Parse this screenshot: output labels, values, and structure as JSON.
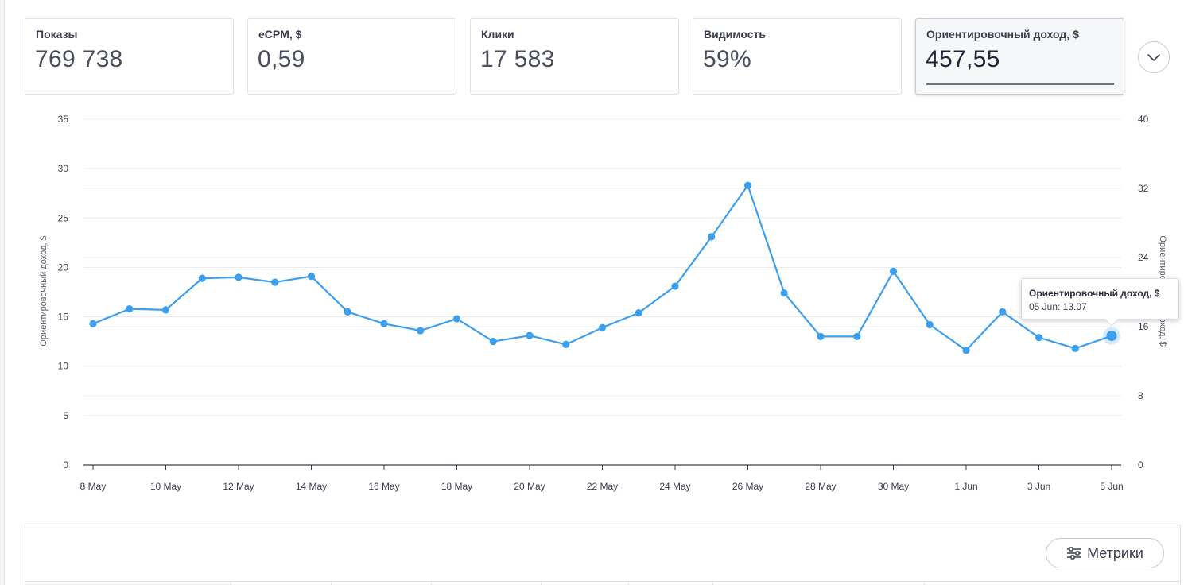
{
  "cards": [
    {
      "label": "Показы",
      "value": "769 738",
      "active": false
    },
    {
      "label": "eCPM, $",
      "value": "0,59",
      "active": false
    },
    {
      "label": "Клики",
      "value": "17 583",
      "active": false
    },
    {
      "label": "Видимость",
      "value": "59%",
      "active": false
    },
    {
      "label": "Ориентировочный доход, $",
      "value": "457,55",
      "active": true
    }
  ],
  "expand_icon": "chevron-down-icon",
  "chart_data": {
    "type": "line",
    "x": [
      "8 May",
      "9 May",
      "10 May",
      "11 May",
      "12 May",
      "13 May",
      "14 May",
      "15 May",
      "16 May",
      "17 May",
      "18 May",
      "19 May",
      "20 May",
      "21 May",
      "22 May",
      "23 May",
      "24 May",
      "25 May",
      "26 May",
      "27 May",
      "28 May",
      "29 May",
      "30 May",
      "31 May",
      "1 Jun",
      "2 Jun",
      "3 Jun",
      "4 Jun",
      "5 Jun"
    ],
    "x_tick_labels": [
      "8 May",
      "10 May",
      "12 May",
      "14 May",
      "16 May",
      "18 May",
      "20 May",
      "22 May",
      "24 May",
      "26 May",
      "28 May",
      "30 May",
      "1 Jun",
      "3 Jun",
      "5 Jun"
    ],
    "series": [
      {
        "name": "Ориентировочный доход, $",
        "values": [
          14.3,
          15.8,
          15.7,
          18.9,
          19.0,
          18.5,
          19.1,
          15.5,
          14.3,
          13.6,
          14.8,
          12.5,
          13.1,
          12.2,
          13.9,
          15.4,
          18.1,
          23.1,
          28.3,
          17.4,
          13.0,
          13.0,
          19.6,
          14.2,
          11.6,
          15.5,
          12.9,
          11.8,
          13.07
        ],
        "color": "#3b9ff0"
      }
    ],
    "ylabel": "Ориентировочный доход, $",
    "ylim": [
      0,
      35
    ],
    "yticks": [
      "0",
      "5",
      "10",
      "15",
      "20",
      "25",
      "30",
      "35"
    ],
    "y2label": "Ориентировочный доход, $",
    "y2lim": [
      0,
      40
    ],
    "y2ticks": [
      "0",
      "8",
      "16",
      "24",
      "32",
      "40"
    ],
    "grid": true,
    "highlighted_index": 28
  },
  "tooltip": {
    "title": "Ориентировочный доход, $",
    "body": "05 Jun: 13.07"
  },
  "table": {
    "metrics_button_label": "Метрики",
    "metrics_icon": "sliders-icon"
  }
}
